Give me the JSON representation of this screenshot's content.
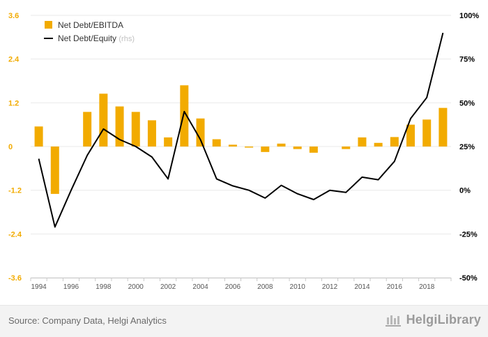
{
  "chart_data": {
    "type": "bar",
    "categories": [
      "1994",
      "1995",
      "1996",
      "1997",
      "1998",
      "1999",
      "2000",
      "2001",
      "2002",
      "2003",
      "2004",
      "2005",
      "2006",
      "2007",
      "2008",
      "2009",
      "2010",
      "2011",
      "2012",
      "2013",
      "2014",
      "2015",
      "2016",
      "2017",
      "2018",
      "2019"
    ],
    "x_tick_labels": [
      "1994",
      "1996",
      "1998",
      "2000",
      "2002",
      "2004",
      "2006",
      "2008",
      "2010",
      "2012",
      "2014",
      "2016",
      "2018"
    ],
    "y_left_ticks": [
      "3.6",
      "2.4",
      "1.2",
      "0",
      "-1.2",
      "-2.4",
      "-3.6"
    ],
    "y_right_ticks": [
      "100%",
      "75%",
      "50%",
      "25%",
      "0%",
      "-25%",
      "-50%"
    ],
    "ylim_left": [
      -3.6,
      3.6
    ],
    "ylim_right": [
      -50,
      100
    ],
    "series": [
      {
        "name": "Net Debt/EBITDA",
        "type": "bar",
        "axis": "left",
        "color": "#f2ab00",
        "values": [
          0.55,
          -1.3,
          null,
          0.95,
          1.45,
          1.1,
          0.95,
          0.72,
          0.25,
          1.68,
          0.77,
          0.2,
          0.05,
          -0.02,
          -0.15,
          0.08,
          -0.07,
          -0.17,
          null,
          -0.07,
          0.25,
          0.1,
          0.26,
          0.6,
          0.74,
          1.06
        ]
      },
      {
        "name": "Net Debt/Equity",
        "name_suffix": "(rhs)",
        "type": "line",
        "axis": "right",
        "color": "#000000",
        "values": [
          18,
          -21,
          0,
          20,
          35,
          29,
          25,
          19,
          6.5,
          45,
          29,
          6.5,
          2.5,
          0,
          -4.5,
          2.8,
          -2,
          -5.3,
          0,
          -1.2,
          7.5,
          6,
          16.5,
          41,
          53,
          90
        ]
      }
    ],
    "legend_position": "top-left",
    "grid": true
  },
  "footer": {
    "source": "Source: Company Data, Helgi Analytics",
    "brand": "HelgiLibrary"
  },
  "colors": {
    "left_axis_text": "#f2ab00",
    "right_axis_text": "#000000",
    "grid": "#e9e9e9"
  }
}
